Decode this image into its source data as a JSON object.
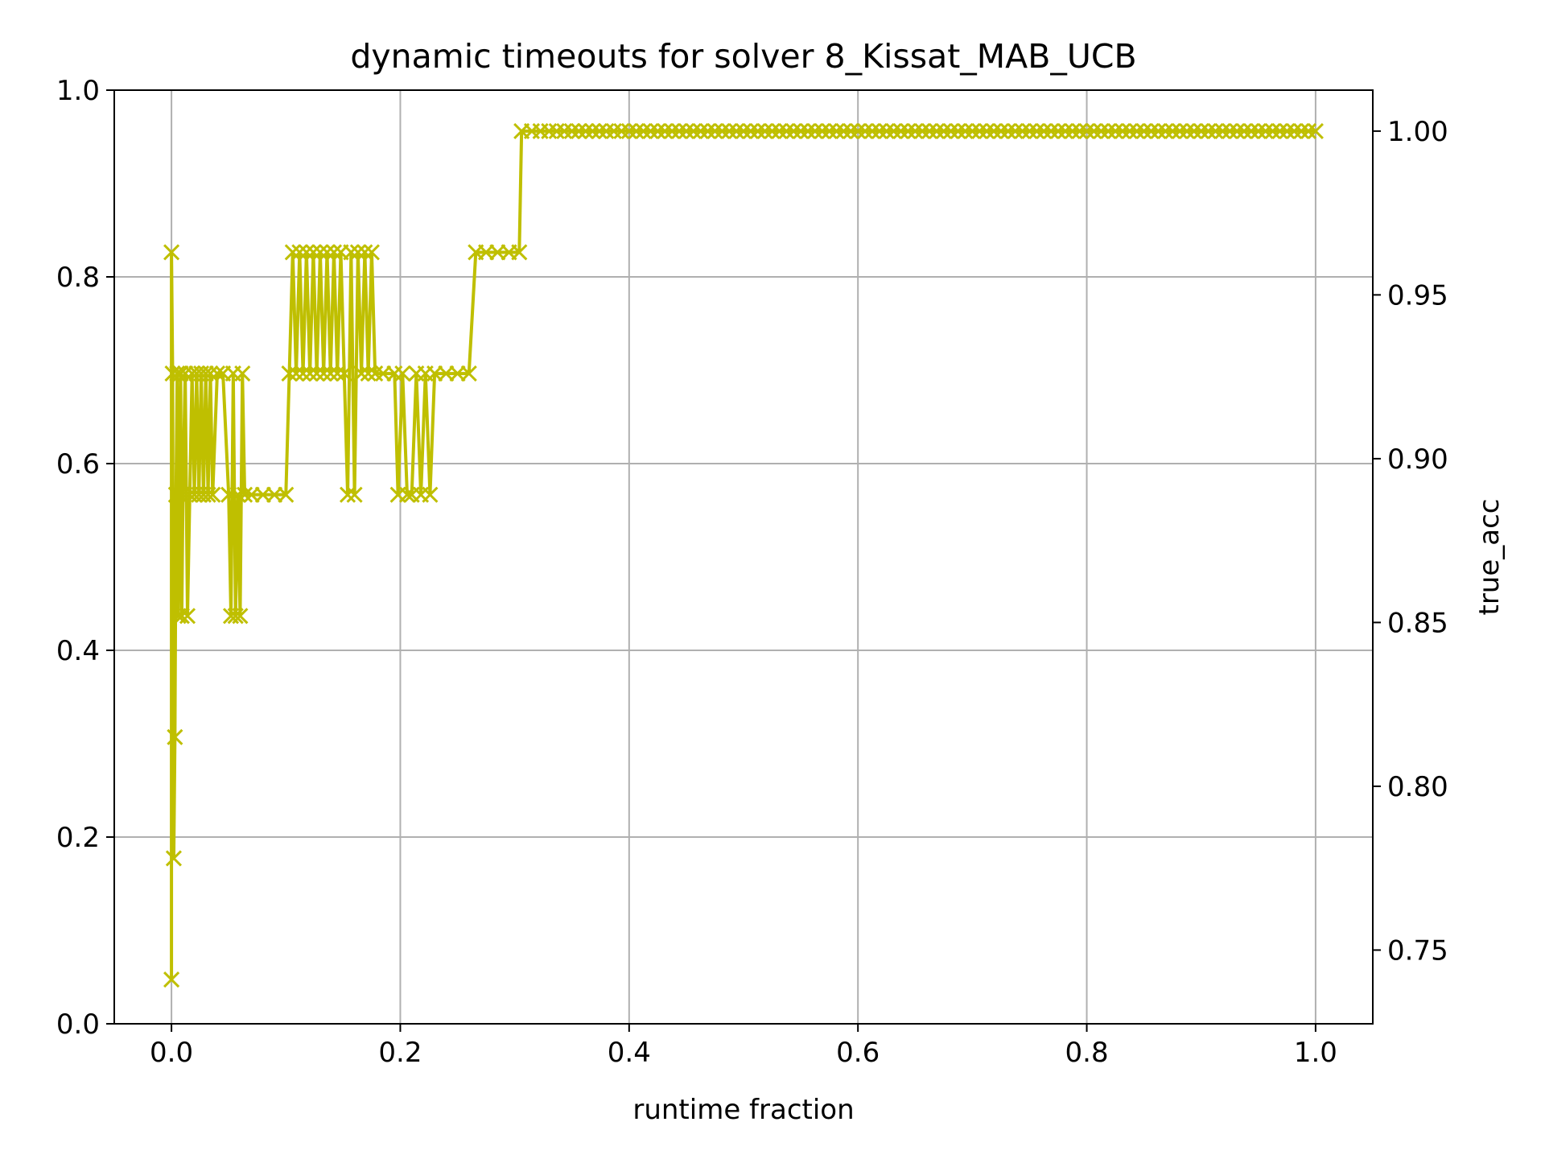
{
  "chart_data": {
    "type": "line",
    "title": "dynamic timeouts for solver 8_Kissat_MAB_UCB",
    "xlabel": "runtime fraction",
    "ylabel": "",
    "y2label": "true_acc",
    "xlim": [
      -0.05,
      1.05
    ],
    "ylim": [
      0.0,
      1.0
    ],
    "y2lim": [
      0.7275,
      1.0125
    ],
    "xticks": [
      "0.0",
      "0.2",
      "0.4",
      "0.6",
      "0.8",
      "1.0"
    ],
    "yticks": [
      "0.0",
      "0.2",
      "0.4",
      "0.6",
      "0.8",
      "1.0"
    ],
    "y2ticks": [
      "0.75",
      "0.80",
      "0.85",
      "0.90",
      "0.95",
      "1.00"
    ],
    "grid": true,
    "marker": "x",
    "series": [
      {
        "color": "#bfbf00",
        "axis": "right",
        "steps": [
          [
            0.0,
            0.741
          ],
          [
            0.0,
            0.963
          ],
          [
            0.001,
            0.926
          ],
          [
            0.002,
            0.778
          ],
          [
            0.003,
            0.815
          ],
          [
            0.004,
            0.889
          ],
          [
            0.005,
            0.926
          ],
          [
            0.006,
            0.852
          ],
          [
            0.007,
            0.889
          ],
          [
            0.008,
            0.926
          ],
          [
            0.009,
            0.852
          ],
          [
            0.01,
            0.889
          ],
          [
            0.012,
            0.926
          ],
          [
            0.014,
            0.852
          ],
          [
            0.016,
            0.889
          ],
          [
            0.018,
            0.926
          ],
          [
            0.02,
            0.889
          ],
          [
            0.022,
            0.926
          ],
          [
            0.024,
            0.889
          ],
          [
            0.026,
            0.926
          ],
          [
            0.028,
            0.889
          ],
          [
            0.03,
            0.926
          ],
          [
            0.032,
            0.889
          ],
          [
            0.034,
            0.926
          ],
          [
            0.036,
            0.889
          ],
          [
            0.04,
            0.926
          ],
          [
            0.045,
            0.926
          ],
          [
            0.05,
            0.889
          ],
          [
            0.052,
            0.852
          ],
          [
            0.054,
            0.926
          ],
          [
            0.056,
            0.852
          ],
          [
            0.058,
            0.889
          ],
          [
            0.06,
            0.852
          ],
          [
            0.062,
            0.926
          ],
          [
            0.064,
            0.889
          ],
          [
            0.07,
            0.889
          ],
          [
            0.08,
            0.889
          ],
          [
            0.09,
            0.889
          ],
          [
            0.1,
            0.889
          ],
          [
            0.103,
            0.926
          ],
          [
            0.106,
            0.963
          ],
          [
            0.109,
            0.926
          ],
          [
            0.112,
            0.963
          ],
          [
            0.115,
            0.926
          ],
          [
            0.118,
            0.963
          ],
          [
            0.121,
            0.926
          ],
          [
            0.124,
            0.963
          ],
          [
            0.127,
            0.926
          ],
          [
            0.13,
            0.963
          ],
          [
            0.133,
            0.926
          ],
          [
            0.136,
            0.963
          ],
          [
            0.139,
            0.926
          ],
          [
            0.142,
            0.963
          ],
          [
            0.145,
            0.926
          ],
          [
            0.148,
            0.963
          ],
          [
            0.151,
            0.926
          ],
          [
            0.154,
            0.889
          ],
          [
            0.157,
            0.963
          ],
          [
            0.16,
            0.889
          ],
          [
            0.163,
            0.963
          ],
          [
            0.166,
            0.926
          ],
          [
            0.169,
            0.963
          ],
          [
            0.172,
            0.926
          ],
          [
            0.175,
            0.963
          ],
          [
            0.178,
            0.926
          ],
          [
            0.185,
            0.926
          ],
          [
            0.195,
            0.926
          ],
          [
            0.198,
            0.889
          ],
          [
            0.202,
            0.926
          ],
          [
            0.206,
            0.889
          ],
          [
            0.21,
            0.889
          ],
          [
            0.214,
            0.926
          ],
          [
            0.218,
            0.889
          ],
          [
            0.222,
            0.926
          ],
          [
            0.226,
            0.889
          ],
          [
            0.23,
            0.926
          ],
          [
            0.24,
            0.926
          ],
          [
            0.25,
            0.926
          ],
          [
            0.26,
            0.926
          ],
          [
            0.266,
            0.963
          ],
          [
            0.275,
            0.963
          ],
          [
            0.285,
            0.963
          ],
          [
            0.295,
            0.963
          ],
          [
            0.304,
            0.963
          ],
          [
            0.306,
            1.0
          ],
          [
            0.315,
            1.0
          ],
          [
            0.33,
            1.0
          ],
          [
            0.35,
            1.0
          ],
          [
            0.38,
            1.0
          ],
          [
            0.4,
            1.0
          ],
          [
            0.5,
            1.0
          ],
          [
            0.6,
            1.0
          ],
          [
            0.7,
            1.0
          ],
          [
            0.8,
            1.0
          ],
          [
            0.9,
            1.0
          ],
          [
            1.0,
            1.0
          ]
        ]
      }
    ]
  }
}
